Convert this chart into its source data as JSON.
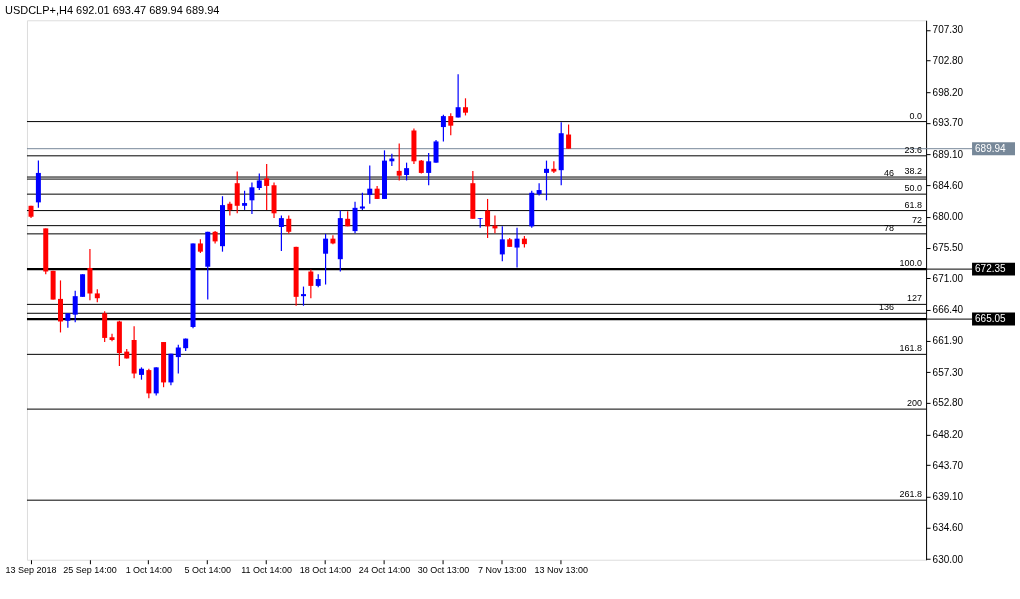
{
  "chart_data": {
    "type": "candlestick",
    "title": "USDCLP+,H4  692.01 693.47 689.94 689.94",
    "categories": [
      "13 Sep 2018",
      null,
      null,
      null,
      null,
      null,
      null,
      null,
      "25 Sep 14:00",
      null,
      null,
      null,
      null,
      null,
      null,
      null,
      "1 Oct 14:00",
      null,
      null,
      null,
      null,
      null,
      null,
      null,
      "5 Oct 14:00",
      null,
      null,
      null,
      null,
      null,
      null,
      null,
      "11 Oct 14:00",
      null,
      null,
      null,
      null,
      null,
      null,
      null,
      "18 Oct 14:00",
      null,
      null,
      null,
      null,
      null,
      null,
      null,
      "24 Oct 14:00",
      null,
      null,
      null,
      null,
      null,
      null,
      null,
      "30 Oct 13:00",
      null,
      null,
      null,
      null,
      null,
      null,
      null,
      "7 Nov 13:00",
      null,
      null,
      null,
      null,
      null,
      null,
      null,
      "13 Nov 13:00",
      null,
      null,
      null,
      null,
      null,
      null,
      null,
      null,
      null,
      null,
      null,
      null,
      null,
      null,
      null,
      null,
      null,
      null,
      null,
      null,
      null,
      null,
      null,
      null,
      null,
      null,
      null,
      null,
      null,
      null,
      null,
      null,
      null,
      null,
      null,
      null,
      null,
      null,
      null,
      null,
      null,
      null,
      null,
      null,
      null,
      null,
      null,
      null,
      null
    ],
    "ohlc": [
      [
        681.6,
        681.6,
        679.8,
        680.0
      ],
      [
        682.1,
        688.2,
        681.3,
        686.4
      ],
      [
        678.3,
        678.3,
        671.6,
        672.0
      ],
      [
        672.1,
        672.1,
        667.9,
        667.9
      ],
      [
        668.0,
        670.7,
        663.1,
        664.7
      ],
      [
        664.8,
        665.9,
        663.8,
        665.9
      ],
      [
        665.7,
        669.2,
        664.6,
        668.4
      ],
      [
        668.3,
        671.6,
        668.3,
        671.6
      ],
      [
        672.5,
        675.3,
        667.8,
        668.8
      ],
      [
        668.8,
        669.4,
        667.5,
        668.1
      ],
      [
        665.9,
        666.2,
        661.7,
        662.3
      ],
      [
        662.4,
        662.9,
        661.8,
        662.0
      ],
      [
        664.7,
        664.8,
        658.2,
        660.1
      ],
      [
        660.3,
        660.7,
        659.3,
        659.3
      ],
      [
        662.0,
        664.0,
        656.4,
        657.1
      ],
      [
        656.9,
        658.0,
        656.2,
        657.8
      ],
      [
        657.6,
        657.8,
        653.5,
        654.2
      ],
      [
        654.2,
        658.0,
        653.9,
        658.0
      ],
      [
        661.7,
        661.7,
        655.1,
        655.8
      ],
      [
        655.8,
        660.0,
        655.4,
        660.0
      ],
      [
        659.5,
        661.3,
        657.1,
        660.9
      ],
      [
        660.8,
        662.2,
        660.4,
        662.2
      ],
      [
        663.9,
        676.1,
        663.7,
        676.1
      ],
      [
        676.1,
        676.7,
        674.7,
        674.9
      ],
      [
        672.7,
        677.8,
        667.9,
        677.8
      ],
      [
        677.8,
        677.9,
        676.1,
        676.4
      ],
      [
        675.7,
        683.0,
        674.9,
        681.7
      ],
      [
        681.9,
        682.2,
        680.2,
        681.0
      ],
      [
        684.9,
        686.6,
        680.5,
        681.6
      ],
      [
        681.6,
        683.8,
        681.0,
        682.0
      ],
      [
        682.4,
        685.0,
        680.4,
        684.3
      ],
      [
        684.2,
        686.3,
        683.9,
        685.3
      ],
      [
        685.6,
        687.7,
        681.0,
        684.5
      ],
      [
        684.6,
        685.0,
        679.8,
        680.5
      ],
      [
        678.5,
        680.2,
        675.0,
        679.8
      ],
      [
        679.7,
        680.2,
        677.5,
        677.8
      ],
      [
        675.6,
        675.6,
        667.0,
        668.3
      ],
      [
        668.4,
        669.8,
        667.0,
        668.7
      ],
      [
        672.0,
        672.3,
        668.1,
        669.9
      ],
      [
        669.9,
        671.6,
        669.7,
        670.9
      ],
      [
        674.6,
        677.5,
        670.1,
        676.8
      ],
      [
        676.8,
        677.3,
        676.0,
        676.1
      ],
      [
        673.8,
        680.9,
        672.0,
        679.8
      ],
      [
        679.7,
        680.8,
        678.6,
        678.6
      ],
      [
        677.9,
        682.2,
        677.6,
        681.3
      ],
      [
        681.2,
        683.5,
        681.0,
        681.5
      ],
      [
        683.2,
        687.5,
        681.9,
        684.1
      ],
      [
        684.1,
        684.5,
        682.6,
        682.6
      ],
      [
        682.6,
        689.7,
        682.6,
        688.2
      ],
      [
        688.1,
        689.2,
        687.4,
        688.5
      ],
      [
        686.7,
        690.7,
        685.3,
        686.0
      ],
      [
        686.1,
        687.9,
        685.3,
        687.1
      ],
      [
        692.6,
        692.9,
        687.7,
        688.1
      ],
      [
        688.2,
        688.3,
        686.3,
        686.4
      ],
      [
        686.4,
        689.3,
        684.6,
        688.1
      ],
      [
        687.9,
        691.2,
        687.9,
        691.0
      ],
      [
        693.1,
        694.9,
        691.0,
        694.7
      ],
      [
        694.7,
        695.1,
        691.9,
        693.3
      ],
      [
        694.5,
        700.8,
        694.5,
        696.0
      ],
      [
        696.0,
        697.3,
        694.8,
        695.2
      ],
      [
        684.9,
        686.7,
        679.7,
        679.7
      ],
      [
        679.7,
        679.8,
        678.4,
        679.8
      ],
      [
        680.9,
        682.6,
        676.9,
        678.6
      ],
      [
        678.7,
        680.2,
        677.6,
        678.3
      ],
      [
        674.5,
        678.6,
        673.5,
        676.7
      ],
      [
        676.7,
        676.9,
        675.6,
        675.6
      ],
      [
        675.5,
        678.4,
        672.6,
        676.8
      ],
      [
        676.8,
        677.2,
        675.5,
        676.0
      ],
      [
        678.6,
        683.8,
        678.4,
        683.5
      ],
      [
        683.3,
        684.9,
        683.1,
        683.9
      ],
      [
        686.4,
        688.2,
        682.4,
        687.0
      ],
      [
        687.0,
        688.1,
        686.4,
        686.6
      ],
      [
        686.8,
        693.8,
        684.6,
        692.2
      ],
      [
        692.01,
        693.47,
        689.94,
        689.94
      ],
      null,
      null,
      null,
      null,
      null,
      null,
      null,
      null,
      null,
      null,
      null,
      null,
      null,
      null,
      null,
      null,
      null,
      null,
      null,
      null,
      null,
      null,
      null,
      null,
      null,
      null,
      null,
      null,
      null,
      null,
      null,
      null,
      null,
      null,
      null,
      null,
      null,
      null,
      null,
      null,
      null,
      null,
      null,
      null,
      null,
      null,
      null,
      null
    ],
    "colors": [
      "#ff0000",
      "#0000ff",
      "#ff0000",
      "#ff0000",
      "#ff0000",
      "#0000ff",
      "#0000ff",
      "#0000ff",
      "#ff0000",
      "#ff0000",
      "#ff0000",
      "#ff0000",
      "#ff0000",
      "#ff0000",
      "#ff0000",
      "#0000ff",
      "#ff0000",
      "#0000ff",
      "#ff0000",
      "#0000ff",
      "#0000ff",
      "#0000ff",
      "#0000ff",
      "#ff0000",
      "#0000ff",
      "#ff0000",
      "#0000ff",
      "#ff0000",
      "#ff0000",
      "#0000ff",
      "#0000ff",
      "#0000ff",
      "#ff0000",
      "#ff0000",
      "#0000ff",
      "#ff0000",
      "#ff0000",
      "#0000ff",
      "#ff0000",
      "#0000ff",
      "#0000ff",
      "#ff0000",
      "#0000ff",
      "#ff0000",
      "#0000ff",
      "#0000ff",
      "#0000ff",
      "#ff0000",
      "#0000ff",
      "#0000ff",
      "#ff0000",
      "#0000ff",
      "#ff0000",
      "#ff0000",
      "#0000ff",
      "#0000ff",
      "#0000ff",
      "#ff0000",
      "#0000ff",
      "#ff0000",
      "#ff0000",
      "#0000ff",
      "#ff0000",
      "#ff0000",
      "#0000ff",
      "#ff0000",
      "#0000ff",
      "#ff0000",
      "#0000ff",
      "#0000ff",
      "#0000ff",
      "#ff0000",
      "#0000ff",
      "#ff0000",
      null,
      null,
      null,
      null,
      null,
      null,
      null,
      null,
      null,
      null,
      null,
      null,
      null,
      null,
      null,
      null,
      null,
      null,
      null,
      null,
      null,
      null,
      null,
      null,
      null,
      null,
      null,
      null,
      null,
      null,
      null,
      null,
      null,
      null,
      null,
      null,
      null,
      null,
      null,
      null,
      null,
      null,
      null,
      null,
      null,
      null,
      null,
      null
    ],
    "ylim": [
      629.9,
      708.7
    ],
    "yticks": [
      {
        "value": 707.3,
        "label": "707.30"
      },
      {
        "value": 702.8,
        "label": "702.80"
      },
      {
        "value": 698.2,
        "label": "698.20"
      },
      {
        "value": 693.7,
        "label": "693.70"
      },
      {
        "value": 689.1,
        "label": "689.10"
      },
      {
        "value": 684.6,
        "label": "684.60"
      },
      {
        "value": 680,
        "label": "680.00"
      },
      {
        "value": 675.5,
        "label": "675.50"
      },
      {
        "value": 671,
        "label": "671.00"
      },
      {
        "value": 666.4,
        "label": "666.40"
      },
      {
        "value": 661.9,
        "label": "661.90"
      },
      {
        "value": 657.3,
        "label": "657.30"
      },
      {
        "value": 652.8,
        "label": "652.80"
      },
      {
        "value": 648.2,
        "label": "648.20"
      },
      {
        "value": 643.7,
        "label": "643.70"
      },
      {
        "value": 639.1,
        "label": "639.10"
      },
      {
        "value": 634.6,
        "label": "634.60"
      },
      {
        "value": 630,
        "label": "630.00"
      }
    ],
    "ref_lines": [
      {
        "axis": "y",
        "value": 689.94,
        "label": "689.94",
        "color": "#778899"
      },
      {
        "axis": "y",
        "value": 672.35,
        "label": "672.35",
        "color": "#000000"
      },
      {
        "axis": "y",
        "value": 665.05,
        "label": "665.05",
        "color": "#000000"
      },
      {
        "axis": "y",
        "value": 693.9
      },
      {
        "axis": "y",
        "value": 688.9
      },
      {
        "axis": "y",
        "value": 685.8
      },
      {
        "axis": "y",
        "value": 685.5
      },
      {
        "axis": "y",
        "value": 683.3
      },
      {
        "axis": "y",
        "value": 680.9
      },
      {
        "axis": "y",
        "value": 678.7
      },
      {
        "axis": "y",
        "value": 677.5
      },
      {
        "axis": "y",
        "value": 667.2
      },
      {
        "axis": "y",
        "value": 665.9
      },
      {
        "axis": "y",
        "value": 659.9
      },
      {
        "axis": "y",
        "value": 651.9
      },
      {
        "axis": "y",
        "value": 638.6
      }
    ],
    "annotations": [
      {
        "text": "0.0",
        "y": 693.9
      },
      {
        "text": "23.6",
        "y": 688.9
      },
      {
        "text": "38.2",
        "y": 685.8
      },
      {
        "text": "46",
        "y": 685.5
      },
      {
        "text": "50.0",
        "y": 683.3
      },
      {
        "text": "61.8",
        "y": 680.9
      },
      {
        "text": "72",
        "y": 678.7
      },
      {
        "text": "78",
        "y": 677.5
      },
      {
        "text": "100.0",
        "y": 672.35
      },
      {
        "text": "127",
        "y": 667.2
      },
      {
        "text": "136",
        "y": 665.9
      },
      {
        "text": "161.8",
        "y": 659.9
      },
      {
        "text": "200",
        "y": 651.9
      },
      {
        "text": "261.8",
        "y": 638.6
      }
    ]
  }
}
